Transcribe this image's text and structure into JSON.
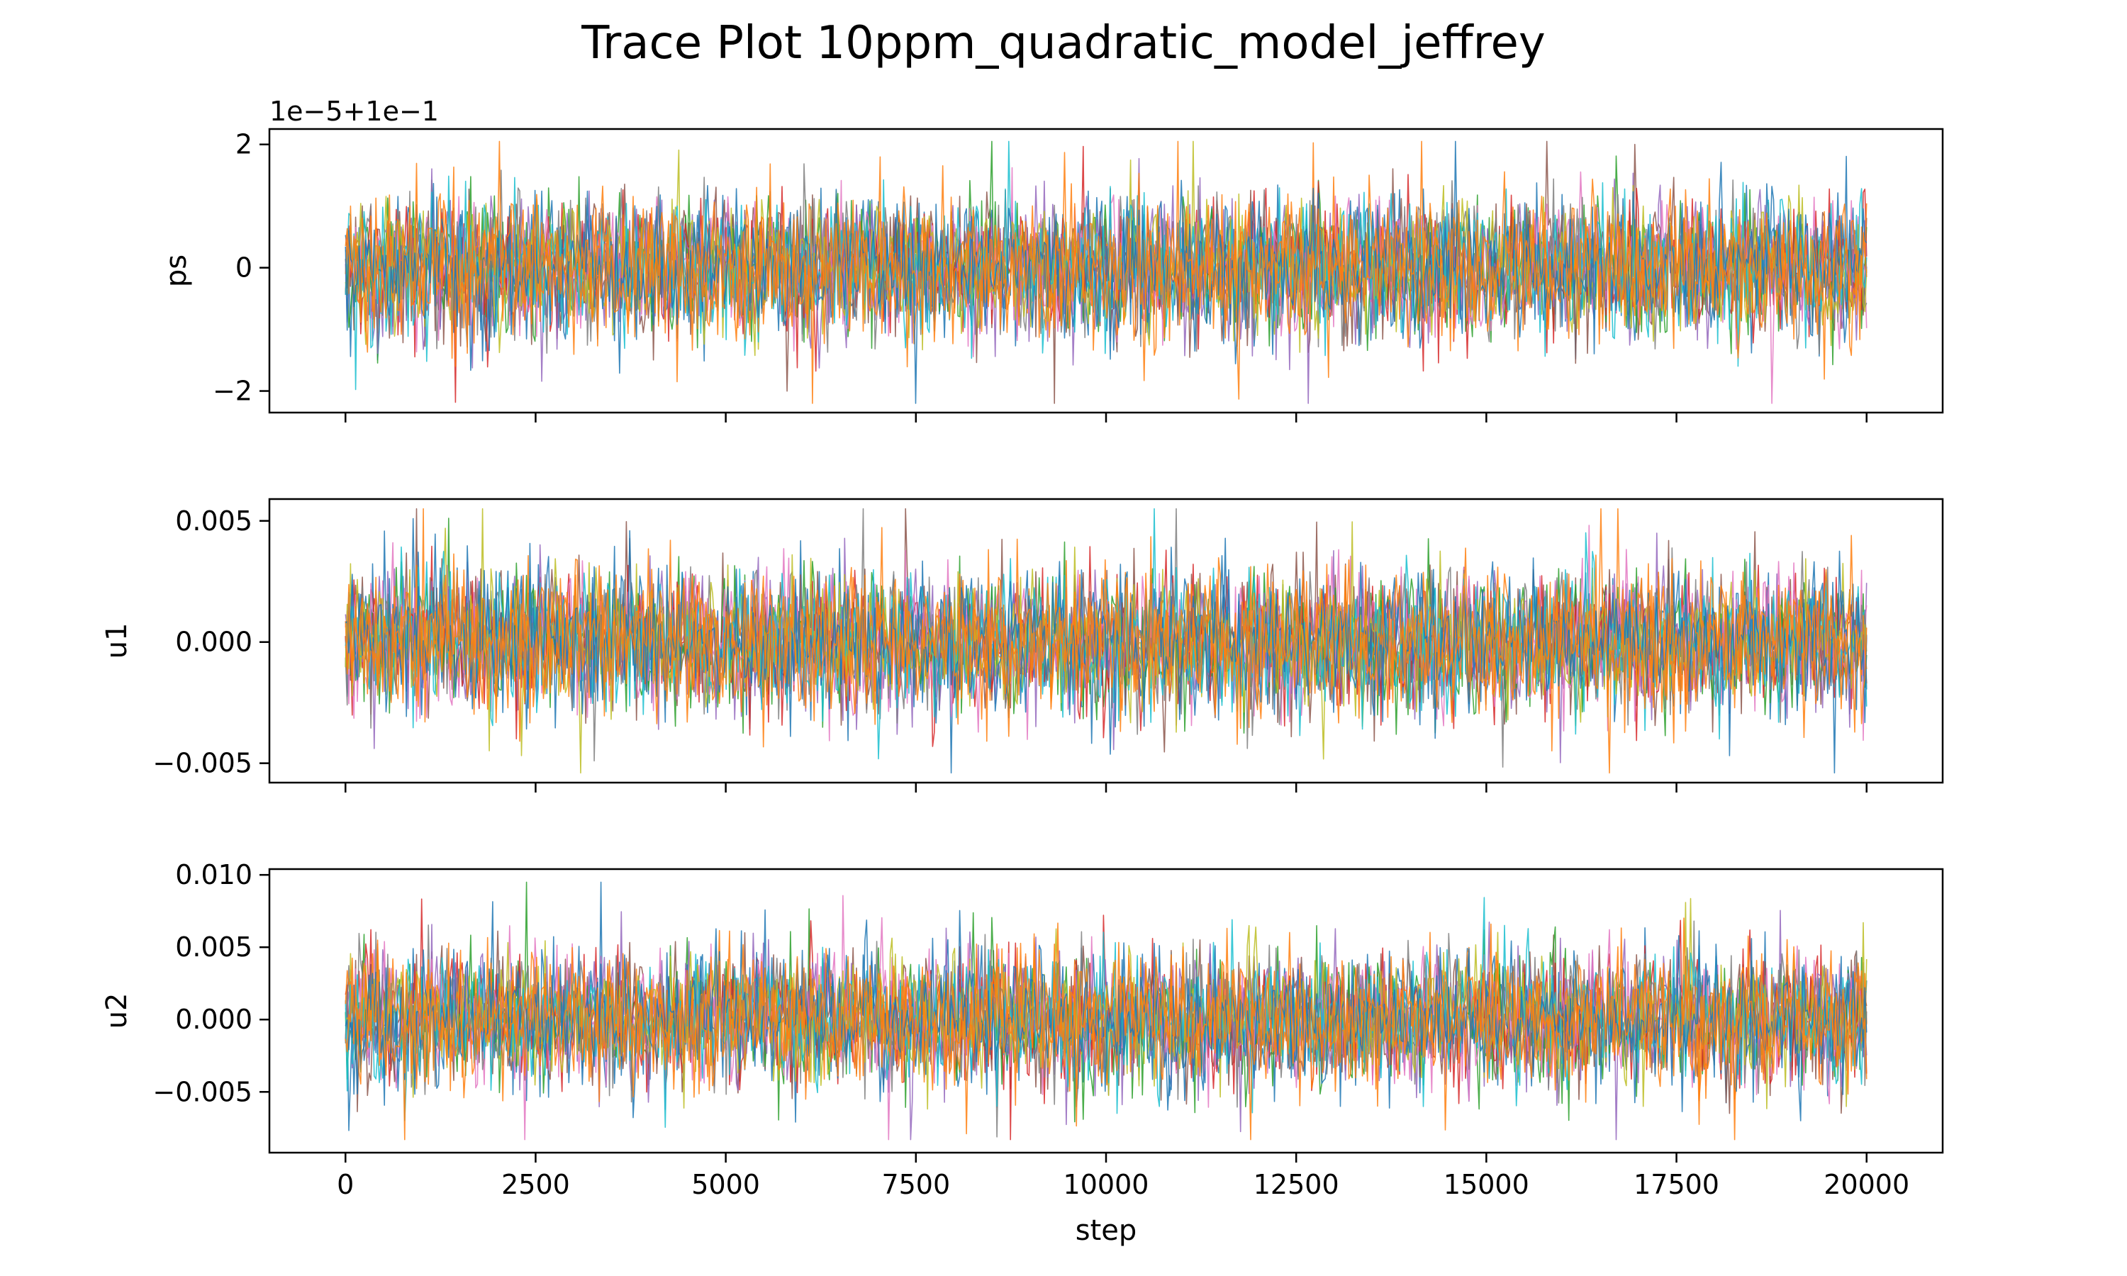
{
  "chart_data": {
    "type": "line",
    "title": "Trace Plot 10ppm_quadratic_model_jeffrey",
    "xlabel": "step",
    "xlim": [
      -1000,
      21000
    ],
    "x_range": [
      0,
      20000
    ],
    "x_ticks": [
      0,
      2500,
      5000,
      7500,
      10000,
      12500,
      15000,
      17500,
      20000
    ],
    "x_tick_labels": [
      "0",
      "2500",
      "5000",
      "7500",
      "10000",
      "12500",
      "15000",
      "17500",
      "20000"
    ],
    "grid": false,
    "legend": "none",
    "series_colors": [
      "#1f77b4",
      "#ff7f0e",
      "#2ca02c",
      "#d62728",
      "#9467bd",
      "#8c564b",
      "#e377c2",
      "#7f7f7f",
      "#bcbd22",
      "#17becf"
    ],
    "panels": [
      {
        "ylabel": "ps",
        "offset_text": "1e−5+1e−1",
        "ylim": [
          -2.35,
          2.25
        ],
        "y_ticks": [
          -2,
          0,
          2
        ],
        "y_tick_labels": [
          "−2",
          "0",
          "2"
        ],
        "center": 0,
        "spread": 0.55,
        "extremes": [
          -2.2,
          2.05
        ]
      },
      {
        "ylabel": "u1",
        "ylim": [
          -0.0058,
          0.0059
        ],
        "y_ticks": [
          -0.005,
          0.0,
          0.005
        ],
        "y_tick_labels": [
          "−0.005",
          "0.000",
          "0.005"
        ],
        "center": 0,
        "spread": 0.0014,
        "extremes": [
          -0.0054,
          0.0055
        ]
      },
      {
        "ylabel": "u2",
        "ylim": [
          -0.0092,
          0.0104
        ],
        "y_ticks": [
          -0.005,
          0.0,
          0.005,
          0.01
        ],
        "y_tick_labels": [
          "−0.005",
          "0.000",
          "0.005",
          "0.010"
        ],
        "center": 0,
        "spread": 0.0022,
        "extremes": [
          -0.0083,
          0.0095
        ]
      }
    ]
  }
}
